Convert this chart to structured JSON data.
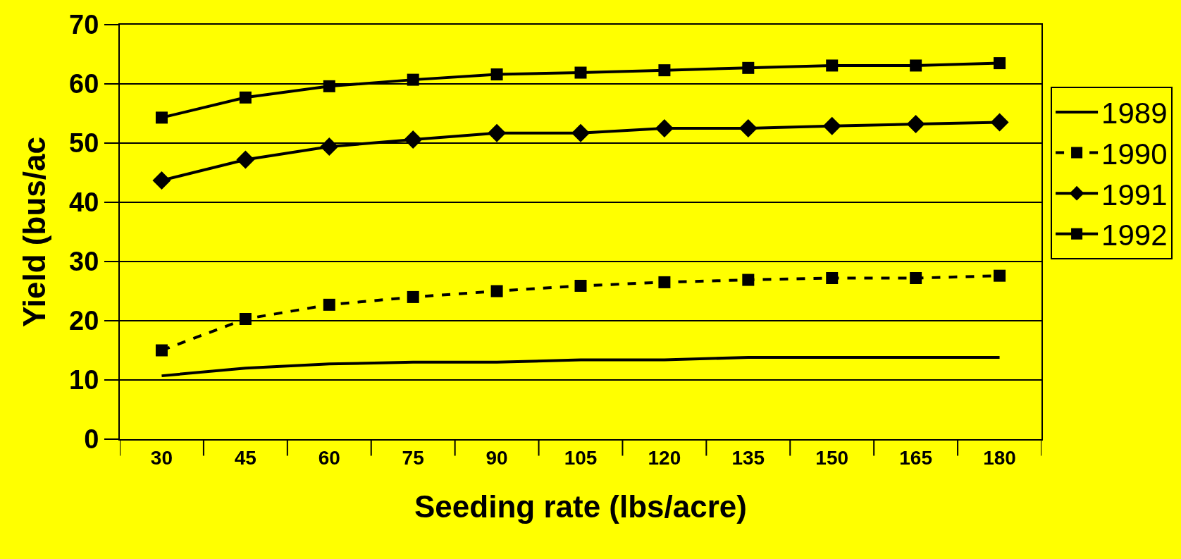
{
  "chart_data": {
    "type": "line",
    "xlabel": "Seeding rate (lbs/acre)",
    "ylabel": "Yield (bus/ac",
    "categories": [
      "30",
      "45",
      "60",
      "75",
      "90",
      "105",
      "120",
      "135",
      "150",
      "165",
      "180"
    ],
    "series": [
      {
        "name": "1989",
        "color": "#000000",
        "marker": "none",
        "line_style": "solid",
        "values": [
          10.7,
          12.0,
          12.7,
          13.0,
          13.0,
          13.4,
          13.4,
          13.8,
          13.8,
          13.8,
          13.8
        ]
      },
      {
        "name": "1990",
        "color": "#000000",
        "marker": "square",
        "line_style": "dashed",
        "values": [
          15.0,
          20.3,
          22.7,
          24.0,
          25.0,
          25.9,
          26.5,
          26.9,
          27.2,
          27.2,
          27.6
        ]
      },
      {
        "name": "1991",
        "color": "#000000",
        "marker": "diamond",
        "line_style": "solid",
        "values": [
          43.7,
          47.2,
          49.4,
          50.6,
          51.7,
          51.7,
          52.5,
          52.5,
          52.9,
          53.2,
          53.5
        ]
      },
      {
        "name": "1992",
        "color": "#000000",
        "marker": "square",
        "line_style": "solid",
        "values": [
          54.3,
          57.7,
          59.6,
          60.7,
          61.6,
          61.9,
          62.3,
          62.7,
          63.1,
          63.1,
          63.5
        ]
      }
    ],
    "ylim": [
      0,
      70
    ],
    "yticks": [
      0,
      10,
      20,
      30,
      40,
      50,
      60,
      70
    ],
    "grid": "y",
    "legend": "right"
  }
}
